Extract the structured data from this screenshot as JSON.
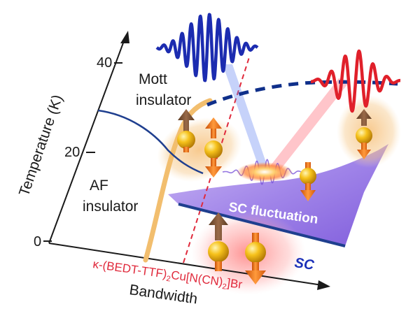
{
  "axes": {
    "y_label": "Temperature (K)",
    "x_label": "Bandwidth",
    "y_ticks": [
      "40",
      "20",
      "0"
    ]
  },
  "regions": {
    "mott": [
      "Mott",
      "insulator"
    ],
    "af": [
      "AF",
      "insulator"
    ],
    "sc_fluctuation": "SC fluctuation",
    "sc": "SC"
  },
  "material": {
    "prefix": "κ-(BEDT-TTF)",
    "sub1": "2",
    "suffix": "Cu[N(CN)",
    "sub2": "2",
    "end": "]Br"
  },
  "colors": {
    "axis": "#1a1a1a",
    "sc_fluct_fill": "#9b7ee6",
    "sc_line": "#1f3f8f",
    "dome": "#0f2f8a",
    "mott_boundary": "#f2be6e",
    "pulse_blue": "#1c2cb0",
    "pulse_red": "#e0202a",
    "material_text": "#e02a3c",
    "sc_label": "#1a2fb8",
    "arrow_orange": "#ff7a1a",
    "arrow_brown": "#7a5236",
    "sphere": "#f6c21b"
  }
}
